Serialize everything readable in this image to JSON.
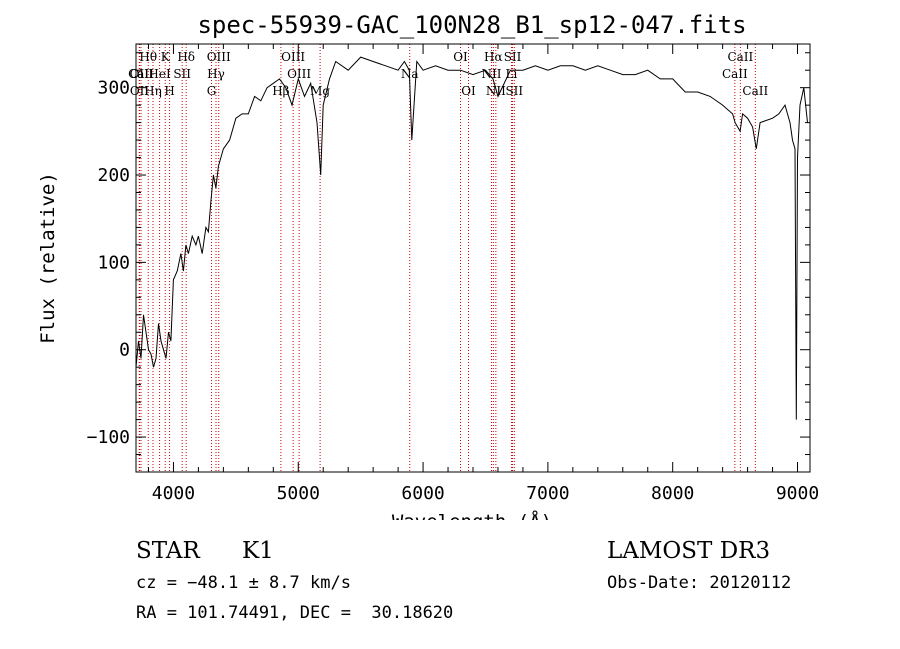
{
  "chart_data": {
    "type": "line",
    "title": "spec-55939-GAC_100N28_B1_sp12-047.fits",
    "xlabel": "Wavelength (Å)",
    "ylabel": "Flux (relative)",
    "xlim": [
      3700,
      9100
    ],
    "ylim": [
      -140,
      350
    ],
    "x_ticks": [
      4000,
      5000,
      6000,
      7000,
      8000,
      9000
    ],
    "y_ticks": [
      -100,
      0,
      100,
      200,
      300
    ],
    "series": [
      {
        "x": [
          3700,
          3720,
          3740,
          3760,
          3780,
          3800,
          3820,
          3840,
          3860,
          3880,
          3900,
          3920,
          3940,
          3960,
          3980,
          4000,
          4030,
          4060,
          4080,
          4100,
          4120,
          4150,
          4180,
          4200,
          4230,
          4260,
          4280,
          4300,
          4320,
          4340,
          4360,
          4400,
          4450,
          4500,
          4550,
          4600,
          4650,
          4700,
          4750,
          4800,
          4850,
          4900,
          4950,
          5000,
          5050,
          5100,
          5150,
          5180,
          5200,
          5250,
          5300,
          5400,
          5500,
          5600,
          5700,
          5800,
          5850,
          5890,
          5910,
          5950,
          6000,
          6100,
          6200,
          6300,
          6400,
          6500,
          6560,
          6600,
          6700,
          6800,
          6900,
          7000,
          7100,
          7200,
          7300,
          7400,
          7500,
          7600,
          7700,
          7800,
          7900,
          8000,
          8100,
          8200,
          8300,
          8400,
          8480,
          8500,
          8540,
          8560,
          8600,
          8640,
          8670,
          8700,
          8800,
          8850,
          8900,
          8940,
          8960,
          8980,
          8990,
          9000,
          9020,
          9050,
          9080
        ],
        "y": [
          -20,
          10,
          -10,
          40,
          20,
          0,
          -5,
          -20,
          -10,
          30,
          10,
          0,
          -10,
          20,
          10,
          80,
          90,
          110,
          90,
          120,
          110,
          130,
          120,
          130,
          110,
          140,
          135,
          170,
          200,
          185,
          210,
          230,
          240,
          265,
          270,
          270,
          290,
          285,
          300,
          305,
          310,
          300,
          280,
          310,
          290,
          305,
          260,
          200,
          280,
          310,
          330,
          320,
          335,
          330,
          325,
          320,
          330,
          320,
          240,
          330,
          320,
          325,
          320,
          320,
          315,
          320,
          310,
          290,
          320,
          320,
          325,
          320,
          325,
          325,
          320,
          325,
          320,
          315,
          315,
          320,
          310,
          310,
          295,
          295,
          290,
          280,
          270,
          260,
          250,
          270,
          265,
          255,
          230,
          260,
          265,
          270,
          280,
          260,
          240,
          230,
          -80,
          220,
          280,
          300,
          260
        ]
      }
    ],
    "line_marks": [
      {
        "label": "Hθ",
        "x": 3798,
        "row": 1
      },
      {
        "label": "OII",
        "x": 3726,
        "row": 2
      },
      {
        "label": "CaII",
        "x": 3740,
        "row": 2
      },
      {
        "label": "OII",
        "x": 3728,
        "row": 3
      },
      {
        "label": "Hη",
        "x": 3836,
        "row": 3
      },
      {
        "label": "K",
        "x": 3934,
        "row": 1
      },
      {
        "label": "HeI",
        "x": 3889,
        "row": 2
      },
      {
        "label": "H",
        "x": 3969,
        "row": 3
      },
      {
        "label": "SII",
        "x": 4070,
        "row": 2
      },
      {
        "label": "Hδ",
        "x": 4102,
        "row": 1
      },
      {
        "label": "OIII",
        "x": 4363,
        "row": 1
      },
      {
        "label": "Hγ",
        "x": 4341,
        "row": 2
      },
      {
        "label": "G",
        "x": 4305,
        "row": 3
      },
      {
        "label": "OIII",
        "x": 4959,
        "row": 1
      },
      {
        "label": "OIII",
        "x": 5007,
        "row": 2
      },
      {
        "label": "Hβ",
        "x": 4861,
        "row": 3
      },
      {
        "label": "Mg",
        "x": 5175,
        "row": 3
      },
      {
        "label": "Na",
        "x": 5893,
        "row": 2
      },
      {
        "label": "OI",
        "x": 6300,
        "row": 1
      },
      {
        "label": "OI",
        "x": 6364,
        "row": 3
      },
      {
        "label": "Hα",
        "x": 6563,
        "row": 1
      },
      {
        "label": "NII",
        "x": 6548,
        "row": 2
      },
      {
        "label": "NII",
        "x": 6583,
        "row": 3
      },
      {
        "label": "SII",
        "x": 6717,
        "row": 1
      },
      {
        "label": "Li",
        "x": 6708,
        "row": 2
      },
      {
        "label": "SII",
        "x": 6731,
        "row": 3
      },
      {
        "label": "CaII",
        "x": 8542,
        "row": 1
      },
      {
        "label": "CaII",
        "x": 8498,
        "row": 2
      },
      {
        "label": "CaII",
        "x": 8662,
        "row": 3
      }
    ]
  },
  "info": {
    "class": "STAR",
    "subclass": "K1",
    "survey": "LAMOST DR3",
    "cz": "cz = −48.1 ± 8.7 km/s",
    "obs_date": "Obs-Date: 20120112",
    "coords": "RA = 101.74491, DEC =  30.18620"
  },
  "colors": {
    "spectrum": "#000000",
    "line_marker": "#cc0000",
    "axes": "#000000",
    "background": "#ffffff"
  }
}
